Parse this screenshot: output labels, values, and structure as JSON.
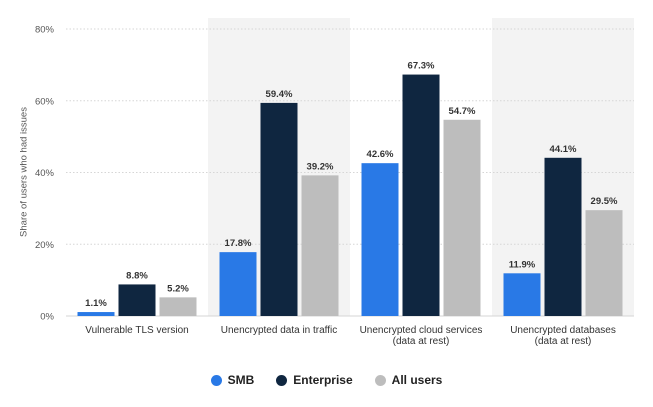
{
  "chart_data": {
    "type": "bar",
    "categories": [
      [
        "Vulnerable TLS version"
      ],
      [
        "Unencrypted data in traffic"
      ],
      [
        "Unencrypted cloud services",
        "(data at rest)"
      ],
      [
        "Unencrypted databases",
        "(data at rest)"
      ]
    ],
    "series": [
      {
        "name": "SMB",
        "values": [
          1.1,
          17.8,
          42.6,
          11.9
        ],
        "color": "#2979e6"
      },
      {
        "name": "Enterprise",
        "values": [
          8.8,
          59.4,
          67.3,
          44.1
        ],
        "color": "#0f2640"
      },
      {
        "name": "All users",
        "values": [
          5.2,
          39.2,
          54.7,
          29.5
        ],
        "color": "#bdbdbd"
      }
    ],
    "ylabel": "Share of users who had issues",
    "ylim": [
      0,
      80
    ],
    "yticks": [
      0,
      20,
      40,
      60,
      80
    ],
    "value_suffix": "%",
    "grid": true,
    "alternating_bands": true,
    "legend_position": "bottom"
  }
}
